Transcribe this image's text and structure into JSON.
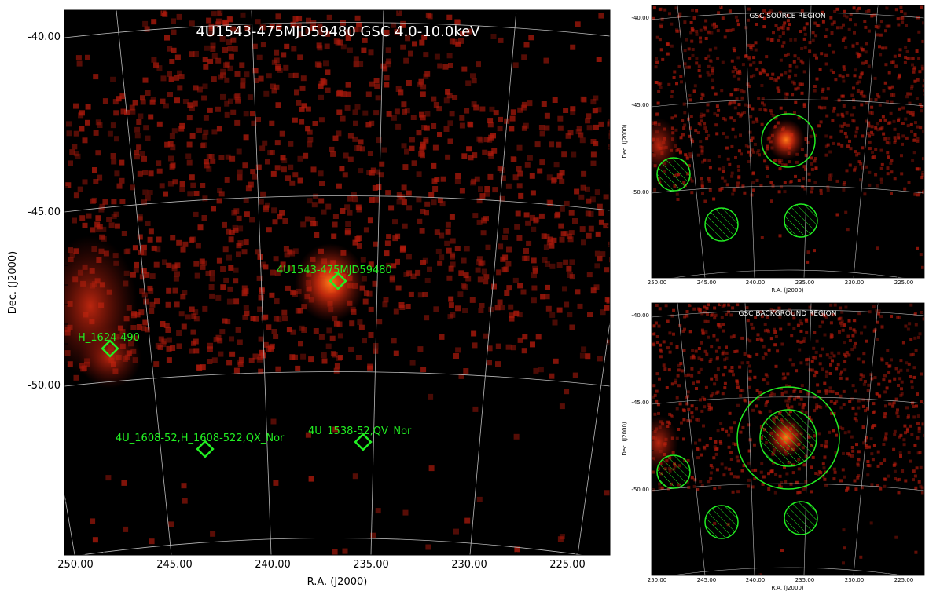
{
  "main": {
    "title": "4U1543-475MJD59480 GSC 4.0-10.0keV",
    "xlabel": "R.A. (J2000)",
    "ylabel": "Dec. (J2000)",
    "ra_ticks": [
      "250.00",
      "245.00",
      "240.00",
      "235.00",
      "230.00",
      "225.00"
    ],
    "dec_ticks": [
      "-40.00",
      "-45.00",
      "-50.00"
    ],
    "sources": [
      {
        "label": "4U1543-475MJD59480"
      },
      {
        "label": "H_1624-490"
      },
      {
        "label": "4U_1608-52,H_1608-522,QX_Nor"
      },
      {
        "label": "4U_1538-52,QV_Nor"
      }
    ]
  },
  "panel_source": {
    "title": "GSC SOURCE REGION",
    "xlabel": "R.A. (J2000)",
    "ylabel": "Dec. (J2000)",
    "ra_ticks": [
      "250.00",
      "245.00",
      "240.00",
      "235.00",
      "230.00",
      "225.00"
    ],
    "dec_ticks": [
      "-40.00",
      "-45.00",
      "-50.00"
    ]
  },
  "panel_background": {
    "title": "GSC BACKGROUND REGION",
    "xlabel": "R.A. (J2000)",
    "ylabel": "Dec. (J2000)",
    "ra_ticks": [
      "250.00",
      "245.00",
      "240.00",
      "235.00",
      "230.00",
      "225.00"
    ],
    "dec_ticks": [
      "-40.00",
      "-45.00",
      "-50.00"
    ]
  },
  "colors": {
    "background": "#000000",
    "counts": "#b01a0c",
    "source_core": "#ff6a10",
    "marker": "#22ee22",
    "grid": "#bbbbbb",
    "title_text": "#ffffff"
  }
}
